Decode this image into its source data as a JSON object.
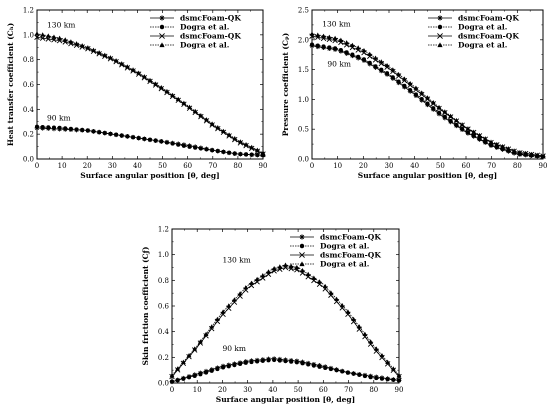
{
  "chart_data": [
    {
      "id": "heat",
      "type": "line",
      "xlabel": "Surface angular position [θ, deg]",
      "ylabel": "Heat transfer coefficient (Cₕ)",
      "xlim": [
        0,
        90
      ],
      "ylim": [
        0,
        1.2
      ],
      "xticks": [
        "0",
        "10",
        "20",
        "30",
        "40",
        "50",
        "60",
        "70",
        "80",
        "90"
      ],
      "yticks": [
        "0.0",
        "0.2",
        "0.4",
        "0.6",
        "0.8",
        "1.0",
        "1.2"
      ],
      "legend": [
        "dsmcFoam-QK",
        "Dogra et al.",
        "dsmcFoam-QK",
        "Dogra et al."
      ],
      "legend_position": "top-right",
      "annotations": [
        "130 km",
        "90 km"
      ],
      "series": [
        {
          "name": "dsmcFoam-QK",
          "marker": "asterisk",
          "group": "90 km",
          "x": [
            0,
            10,
            20,
            30,
            40,
            50,
            60,
            70,
            80,
            90
          ],
          "y": [
            0.25,
            0.24,
            0.23,
            0.2,
            0.17,
            0.14,
            0.11,
            0.07,
            0.04,
            0.03
          ]
        },
        {
          "name": "Dogra et al.",
          "marker": "circle",
          "group": "90 km",
          "x": [
            0,
            10,
            20,
            30,
            40,
            50,
            60,
            70,
            80,
            90
          ],
          "y": [
            0.26,
            0.25,
            0.23,
            0.2,
            0.17,
            0.14,
            0.1,
            0.07,
            0.04,
            0.03
          ]
        },
        {
          "name": "dsmcFoam-QK",
          "marker": "x",
          "group": "130 km",
          "x": [
            0,
            10,
            20,
            30,
            40,
            50,
            60,
            70,
            80,
            90
          ],
          "y": [
            0.98,
            0.95,
            0.89,
            0.8,
            0.69,
            0.56,
            0.42,
            0.27,
            0.14,
            0.04
          ]
        },
        {
          "name": "Dogra et al.",
          "marker": "triangle",
          "group": "130 km",
          "x": [
            0,
            10,
            20,
            30,
            40,
            50,
            60,
            70,
            80,
            90
          ],
          "y": [
            1.01,
            0.97,
            0.9,
            0.81,
            0.7,
            0.57,
            0.43,
            0.28,
            0.15,
            0.05
          ]
        }
      ]
    },
    {
      "id": "pressure",
      "type": "line",
      "xlabel": "Surface angular position [θ, deg]",
      "ylabel": "Pressure coefficient (Cₚ)",
      "xlim": [
        0,
        90
      ],
      "ylim": [
        0,
        2.5
      ],
      "xticks": [
        "0",
        "10",
        "20",
        "30",
        "40",
        "50",
        "60",
        "70",
        "80",
        "90"
      ],
      "yticks": [
        "0.0",
        "0.5",
        "1.0",
        "1.5",
        "2.0",
        "2.5"
      ],
      "legend": [
        "dsmcFoam-QK",
        "Dogra et al.",
        "dsmcFoam-QK",
        "Dogra et al."
      ],
      "legend_position": "top-right",
      "annotations": [
        "130 km",
        "90 km"
      ],
      "series": [
        {
          "name": "dsmcFoam-QK",
          "marker": "asterisk",
          "group": "90 km",
          "x": [
            0,
            10,
            20,
            30,
            40,
            50,
            60,
            70,
            80,
            90
          ],
          "y": [
            1.9,
            1.83,
            1.66,
            1.4,
            1.08,
            0.74,
            0.45,
            0.22,
            0.08,
            0.04
          ]
        },
        {
          "name": "Dogra et al.",
          "marker": "circle",
          "group": "90 km",
          "x": [
            0,
            10,
            20,
            30,
            40,
            50,
            60,
            70,
            80,
            90
          ],
          "y": [
            1.92,
            1.85,
            1.68,
            1.42,
            1.1,
            0.76,
            0.46,
            0.23,
            0.09,
            0.04
          ]
        },
        {
          "name": "dsmcFoam-QK",
          "marker": "x",
          "group": "130 km",
          "x": [
            0,
            10,
            20,
            30,
            40,
            50,
            60,
            70,
            80,
            90
          ],
          "y": [
            2.06,
            1.98,
            1.79,
            1.52,
            1.18,
            0.83,
            0.52,
            0.27,
            0.11,
            0.05
          ]
        },
        {
          "name": "Dogra et al.",
          "marker": "triangle",
          "group": "130 km",
          "x": [
            0,
            10,
            20,
            30,
            40,
            50,
            60,
            70,
            80,
            90
          ],
          "y": [
            2.1,
            2.02,
            1.83,
            1.55,
            1.21,
            0.85,
            0.53,
            0.28,
            0.12,
            0.05
          ]
        }
      ]
    },
    {
      "id": "skin",
      "type": "line",
      "xlabel": "Surface angular position [θ, deg]",
      "ylabel": "Skin friction coefficient (Cƒ)",
      "xlim": [
        0,
        90
      ],
      "ylim": [
        0,
        1.2
      ],
      "xticks": [
        "0",
        "10",
        "20",
        "30",
        "40",
        "50",
        "60",
        "70",
        "80",
        "90"
      ],
      "yticks": [
        "0.0",
        "0.2",
        "0.4",
        "0.6",
        "0.8",
        "1.0",
        "1.2"
      ],
      "legend": [
        "dsmcFoam-QK",
        "Dogra et al.",
        "dsmcFoam-QK",
        "Dogra et al."
      ],
      "legend_position": "top-right",
      "annotations": [
        "130 km",
        "90 km"
      ],
      "series": [
        {
          "name": "dsmcFoam-QK",
          "marker": "asterisk",
          "group": "90 km",
          "x": [
            0,
            10,
            20,
            30,
            40,
            50,
            60,
            70,
            80,
            90
          ],
          "y": [
            0.01,
            0.07,
            0.13,
            0.17,
            0.19,
            0.17,
            0.13,
            0.08,
            0.05,
            0.02
          ]
        },
        {
          "name": "Dogra et al.",
          "marker": "circle",
          "group": "90 km",
          "x": [
            0,
            10,
            20,
            30,
            40,
            50,
            60,
            70,
            80,
            90
          ],
          "y": [
            0.01,
            0.06,
            0.12,
            0.16,
            0.18,
            0.16,
            0.12,
            0.08,
            0.04,
            0.02
          ]
        },
        {
          "name": "dsmcFoam-QK",
          "marker": "x",
          "group": "130 km",
          "x": [
            0,
            10,
            20,
            30,
            40,
            45,
            50,
            60,
            70,
            80,
            90
          ],
          "y": [
            0.05,
            0.28,
            0.53,
            0.74,
            0.87,
            0.9,
            0.88,
            0.75,
            0.53,
            0.27,
            0.05
          ]
        },
        {
          "name": "Dogra et al.",
          "marker": "triangle",
          "group": "130 km",
          "x": [
            0,
            10,
            20,
            30,
            40,
            45,
            50,
            60,
            70,
            80,
            90
          ],
          "y": [
            0.06,
            0.29,
            0.55,
            0.76,
            0.89,
            0.92,
            0.9,
            0.77,
            0.55,
            0.29,
            0.06
          ]
        }
      ]
    }
  ]
}
